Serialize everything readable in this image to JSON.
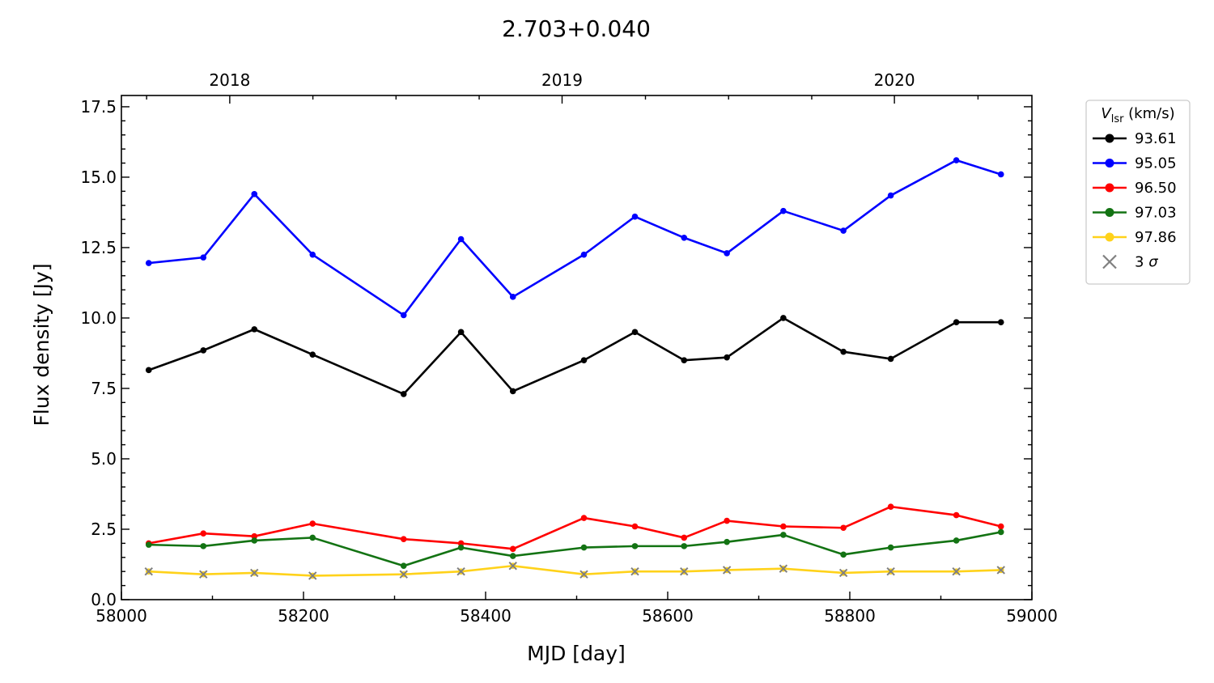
{
  "chart_data": {
    "type": "line",
    "title": "2.703+0.040",
    "xlabel": "MJD [day]",
    "ylabel": "Flux density [Jy]",
    "xlim": [
      58000,
      59000
    ],
    "ylim": [
      0,
      17.9
    ],
    "xticks": [
      "58000",
      "58200",
      "58400",
      "58600",
      "58800",
      "59000"
    ],
    "yticks": [
      "0.0",
      "2.5",
      "5.0",
      "7.5",
      "10.0",
      "12.5",
      "15.0",
      "17.5"
    ],
    "top_axis": {
      "labels": [
        "2018",
        "2019",
        "2020"
      ],
      "label_positions": [
        58119,
        58484,
        58849
      ],
      "major_ticks": [
        58119,
        58484,
        58849
      ]
    },
    "grid": false,
    "legend": {
      "title_main": "V",
      "title_sub": "lsr",
      "title_unit": " (km/s)",
      "position": "outside-top-right",
      "sigma_marker_label": "3 σ"
    },
    "x": [
      58030,
      58090,
      58146,
      58210,
      58310,
      58373,
      58430,
      58508,
      58564,
      58618,
      58665,
      58727,
      58793,
      58845,
      58917,
      58966
    ],
    "series": [
      {
        "name": "93.61",
        "color": "#000000",
        "values": [
          8.15,
          8.85,
          9.6,
          8.7,
          7.3,
          9.5,
          7.4,
          8.5,
          9.5,
          8.5,
          8.6,
          10.0,
          8.8,
          8.55,
          9.85,
          9.85
        ]
      },
      {
        "name": "95.05",
        "color": "#0000ff",
        "values": [
          11.95,
          12.15,
          14.4,
          12.25,
          10.1,
          12.8,
          10.75,
          12.25,
          13.6,
          12.85,
          12.3,
          13.8,
          13.1,
          14.35,
          15.6,
          15.1
        ]
      },
      {
        "name": "96.50",
        "color": "#ff0000",
        "values": [
          2.0,
          2.35,
          2.25,
          2.7,
          2.15,
          2.0,
          1.8,
          2.9,
          2.6,
          2.2,
          2.8,
          2.6,
          2.55,
          3.3,
          3.0,
          2.6
        ]
      },
      {
        "name": "97.03",
        "color": "#137313",
        "values": [
          1.95,
          1.9,
          2.1,
          2.2,
          1.2,
          1.85,
          1.55,
          1.85,
          1.9,
          1.9,
          2.05,
          2.3,
          1.6,
          1.85,
          2.1,
          2.4
        ]
      },
      {
        "name": "97.86",
        "color": "#ffd21a",
        "values": [
          1.0,
          0.9,
          0.95,
          0.85,
          0.9,
          1.0,
          1.2,
          0.9,
          1.0,
          1.0,
          1.05,
          1.1,
          0.95,
          1.0,
          1.0,
          1.05
        ]
      }
    ],
    "sigma_points": {
      "series": "97.86",
      "marker": "x",
      "color": "#808080"
    }
  }
}
